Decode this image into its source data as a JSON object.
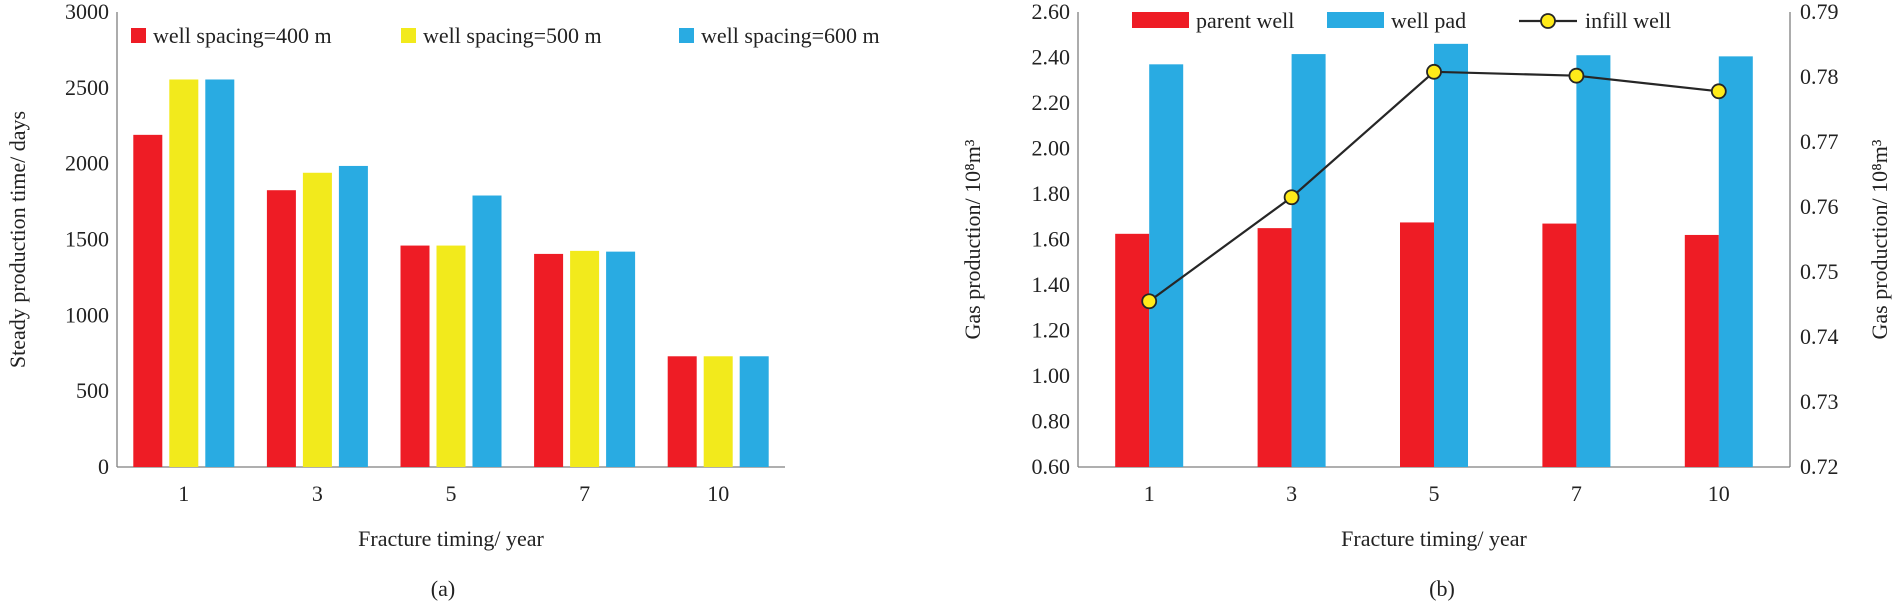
{
  "colors": {
    "red": "#ee1c25",
    "yellow": "#f2ea1c",
    "blue": "#29abe2",
    "line": "#262626",
    "marker": "#ffeb1a"
  },
  "chart_data": [
    {
      "type": "bar",
      "caption": "(a)",
      "xlabel": "Fracture timing/ year",
      "ylabel": "Steady production time/ days",
      "categories": [
        "1",
        "3",
        "5",
        "7",
        "10"
      ],
      "ylim": [
        0,
        3000
      ],
      "yticks": [
        0,
        500,
        1000,
        1500,
        2000,
        2500,
        3000
      ],
      "legend_position": "top",
      "series": [
        {
          "name": "well spacing=400 m",
          "color": "#ee1c25",
          "values": [
            2190,
            1825,
            1460,
            1405,
            730
          ]
        },
        {
          "name": "well spacing=500 m",
          "color": "#f2ea1c",
          "values": [
            2555,
            1940,
            1460,
            1425,
            730
          ]
        },
        {
          "name": "well spacing=600 m",
          "color": "#29abe2",
          "values": [
            2555,
            1985,
            1790,
            1420,
            730
          ]
        }
      ]
    },
    {
      "type": "bar",
      "caption": "(b)",
      "xlabel": "Fracture timing/ year",
      "ylabel": "Gas production/ 10⁸m³",
      "ylabel_right": "Gas production/ 10⁸m³",
      "categories": [
        "1",
        "3",
        "5",
        "7",
        "10"
      ],
      "ylim": [
        0.6,
        2.6
      ],
      "yticks": [
        "0.60",
        "0.80",
        "1.00",
        "1.20",
        "1.40",
        "1.60",
        "1.80",
        "2.00",
        "2.20",
        "2.40",
        "2.60"
      ],
      "ylim_right": [
        0.72,
        0.79
      ],
      "yticks_right": [
        "0.72",
        "0.73",
        "0.74",
        "0.75",
        "0.76",
        "0.77",
        "0.78",
        "0.79"
      ],
      "legend_position": "top",
      "series": [
        {
          "name": "parent well",
          "type": "bar",
          "axis": "left",
          "color": "#ee1c25",
          "values": [
            1.625,
            1.65,
            1.675,
            1.67,
            1.62
          ]
        },
        {
          "name": "well pad",
          "type": "bar",
          "axis": "left",
          "color": "#29abe2",
          "values": [
            2.37,
            2.415,
            2.46,
            2.41,
            2.405
          ]
        },
        {
          "name": "infill well",
          "type": "line",
          "axis": "right",
          "color": "#262626",
          "values": [
            0.7455,
            0.7615,
            0.7808,
            0.7802,
            0.7778
          ]
        }
      ]
    }
  ]
}
